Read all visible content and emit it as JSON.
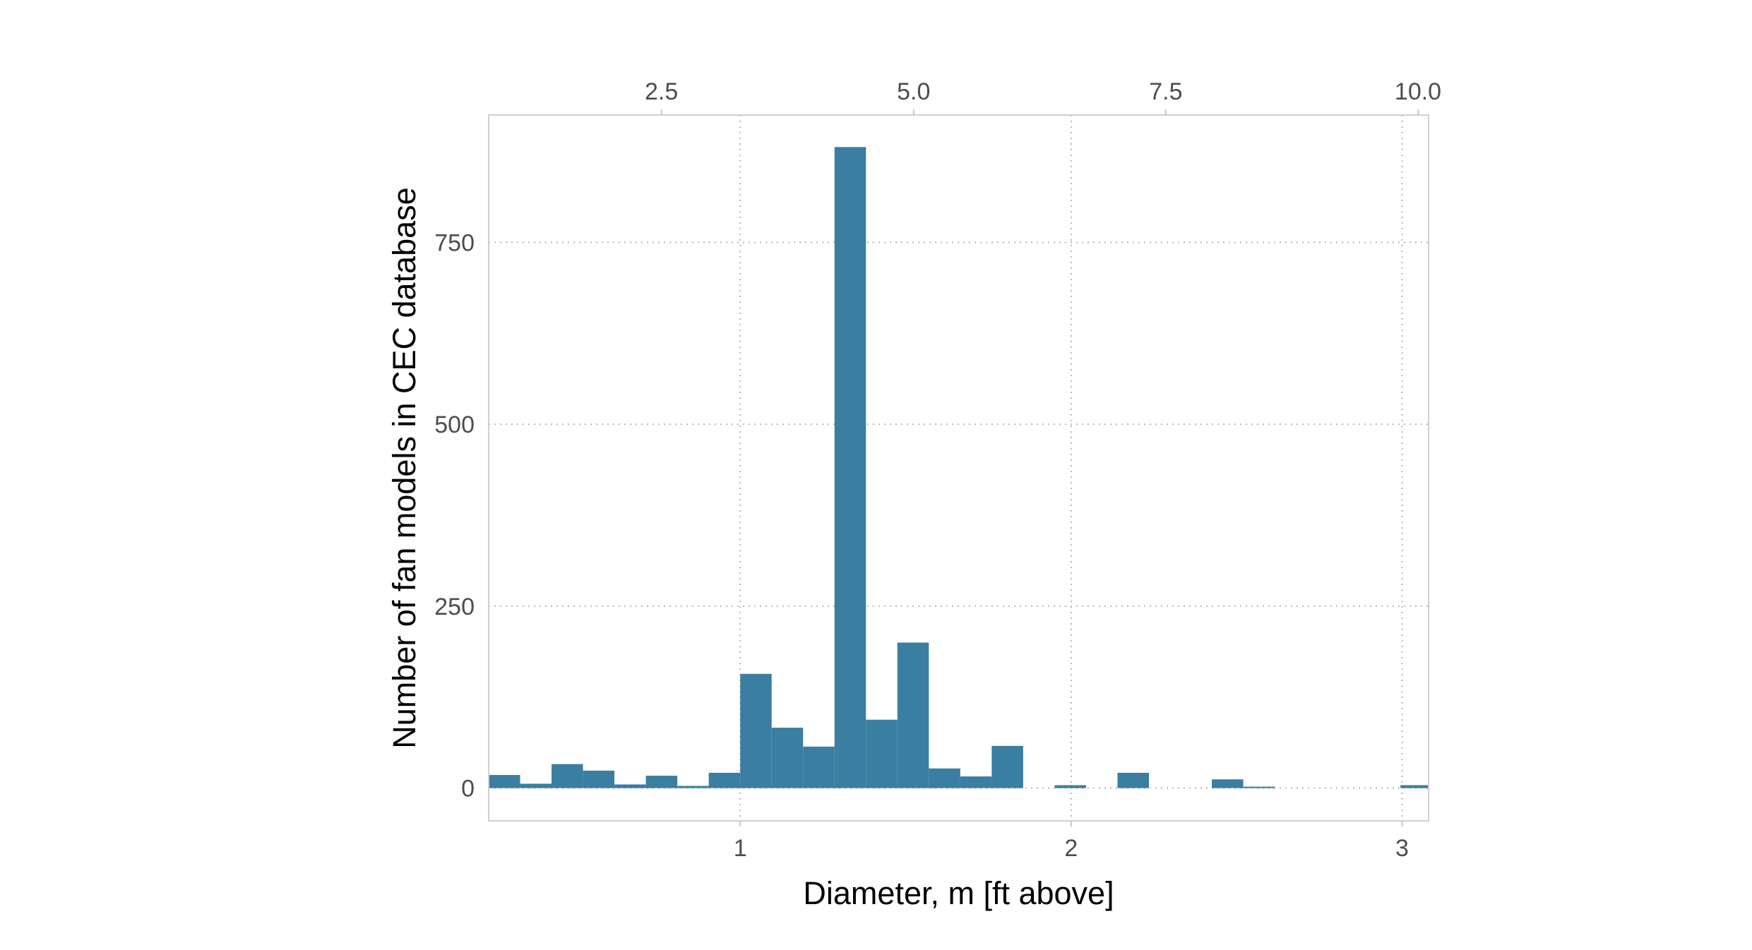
{
  "chart_data": {
    "type": "bar",
    "title": "",
    "xlabel": "Diameter, m [ft above]",
    "ylabel": "Number of fan models in CEC database",
    "bar_color": "#3a7ea1",
    "grid": true,
    "grid_style": "dotted",
    "xlim": [
      0.24,
      3.08
    ],
    "ylim": [
      -45,
      925
    ],
    "x_ticks": [
      {
        "value": 1,
        "label": "1"
      },
      {
        "value": 2,
        "label": "2"
      },
      {
        "value": 3,
        "label": "3"
      }
    ],
    "x_top_ticks": [
      {
        "value": 2.5,
        "label": "2.5"
      },
      {
        "value": 5.0,
        "label": "5.0"
      },
      {
        "value": 7.5,
        "label": "7.5"
      },
      {
        "value": 10.0,
        "label": "10.0"
      }
    ],
    "top_axis_unit_factor": 0.3048,
    "y_ticks": [
      {
        "value": 0,
        "label": "0"
      },
      {
        "value": 250,
        "label": "250"
      },
      {
        "value": 500,
        "label": "500"
      },
      {
        "value": 750,
        "label": "750"
      }
    ],
    "bins": {
      "x_start": [
        0.24,
        0.335,
        0.43,
        0.525,
        0.62,
        0.715,
        0.81,
        0.905,
        1.0,
        1.095,
        1.19,
        1.285,
        1.38,
        1.475,
        1.57,
        1.665,
        1.76,
        1.855,
        1.95,
        2.045,
        2.14,
        2.235,
        2.33,
        2.425,
        2.52,
        2.615,
        2.71,
        2.805,
        2.9,
        2.995
      ],
      "x_end": [
        0.335,
        0.43,
        0.525,
        0.62,
        0.715,
        0.81,
        0.905,
        1.0,
        1.095,
        1.19,
        1.285,
        1.38,
        1.475,
        1.57,
        1.665,
        1.76,
        1.855,
        1.95,
        2.045,
        2.14,
        2.235,
        2.33,
        2.425,
        2.52,
        2.615,
        2.71,
        2.805,
        2.9,
        2.995,
        3.09
      ],
      "values": [
        18,
        6,
        33,
        24,
        5,
        17,
        3,
        21,
        157,
        83,
        57,
        881,
        94,
        200,
        27,
        16,
        58,
        0,
        4,
        0,
        21,
        0,
        0,
        12,
        2,
        0,
        0,
        0,
        0,
        4
      ]
    }
  }
}
